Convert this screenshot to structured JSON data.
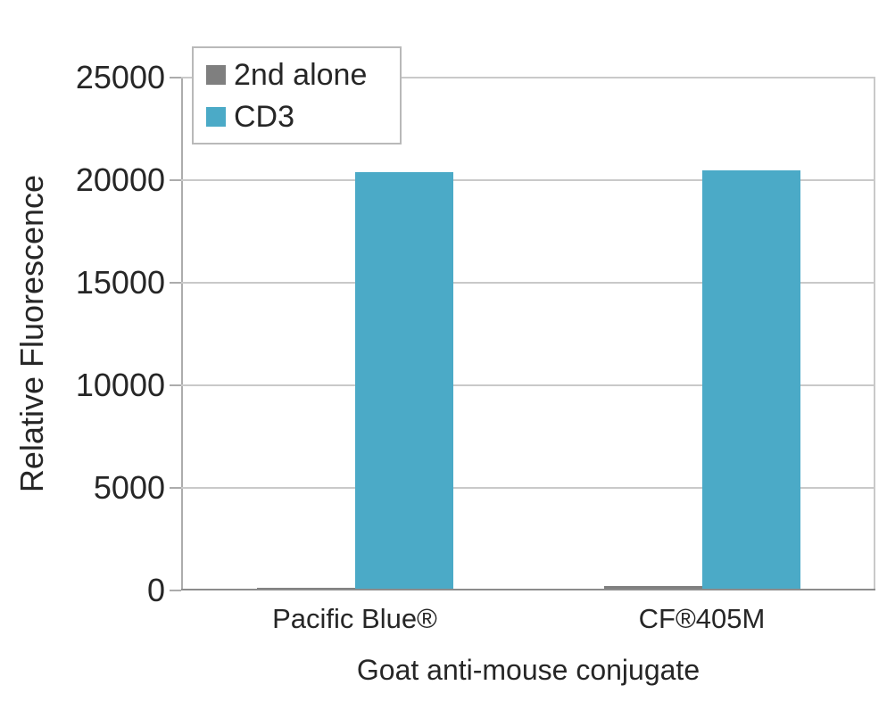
{
  "chart_data": {
    "type": "bar",
    "title": "",
    "xlabel": "Goat anti-mouse conjugate",
    "ylabel": "Relative Fluorescence",
    "categories": [
      "Pacific Blue®",
      "CF®405M"
    ],
    "series": [
      {
        "name": "2nd alone",
        "color": "#7F7F7F",
        "values": [
          150,
          200
        ]
      },
      {
        "name": "CD3",
        "color": "#4BAAC7",
        "values": [
          20400,
          20500
        ]
      }
    ],
    "ylim": [
      0,
      25000
    ],
    "yticks": [
      0,
      5000,
      10000,
      15000,
      20000,
      25000
    ],
    "grid": true,
    "grid_axis": "y",
    "legend_position": "top-left",
    "bar_orientation": "vertical"
  },
  "colors": {
    "background": "#FFFFFF",
    "text": "#262626",
    "gridline": "#C9C9C9",
    "axis": "#ACACAC",
    "axis_bottom": "#8C8C8C",
    "legend_border": "#B9B9B9"
  }
}
